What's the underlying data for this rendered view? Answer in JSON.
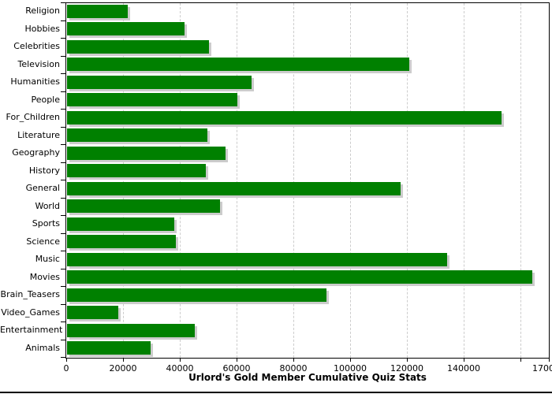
{
  "chart_data": {
    "type": "bar",
    "orientation": "horizontal",
    "title": "Urlord's Gold Member Cumulative Quiz Stats",
    "xlabel": "",
    "ylabel": "",
    "xlim": [
      0,
      170000
    ],
    "grid": true,
    "legend": false,
    "bar_color": "#008000",
    "shadow_color": "#cccccc",
    "grid_color": "#cccccc",
    "axis_color": "#000000",
    "background_color": "#ffffff",
    "categories": [
      "Religion",
      "Hobbies",
      "Celebrities",
      "Television",
      "Humanities",
      "People",
      "For_Children",
      "Literature",
      "Geography",
      "History",
      "General",
      "World",
      "Sports",
      "Science",
      "Music",
      "Movies",
      "Brain_Teasers",
      "Video_Games",
      "Entertainment",
      "Animals"
    ],
    "values": [
      21500,
      41500,
      50000,
      120500,
      65000,
      60000,
      153000,
      49500,
      55700,
      49000,
      117500,
      54000,
      37800,
      38200,
      134000,
      164000,
      91500,
      18000,
      45000,
      29500
    ],
    "x_ticks": [
      {
        "value": 0,
        "label": "0"
      },
      {
        "value": 20000,
        "label": "20000"
      },
      {
        "value": 40000,
        "label": "40000"
      },
      {
        "value": 60000,
        "label": "60000"
      },
      {
        "value": 80000,
        "label": "80000"
      },
      {
        "value": 100000,
        "label": "100000"
      },
      {
        "value": 120000,
        "label": "120000"
      },
      {
        "value": 140000,
        "label": "140000"
      },
      {
        "value": 160000,
        "label": ""
      },
      {
        "value": 170000,
        "label": "170000"
      }
    ]
  }
}
